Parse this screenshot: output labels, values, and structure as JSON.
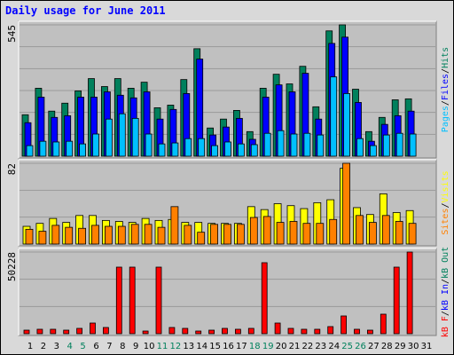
{
  "chart_data": {
    "type": "bar",
    "title": "Daily usage for June 2011",
    "categories": [
      "1",
      "2",
      "3",
      "4",
      "5",
      "6",
      "7",
      "8",
      "9",
      "10",
      "11",
      "12",
      "13",
      "14",
      "15",
      "16",
      "17",
      "18",
      "19",
      "20",
      "21",
      "22",
      "23",
      "24",
      "25",
      "26",
      "27",
      "28",
      "29",
      "30",
      "31"
    ],
    "weekend_days": [
      4,
      5,
      11,
      12,
      18,
      19,
      25,
      26
    ],
    "weekday_color": "#000000",
    "weekend_color": "#00805c",
    "separator": "/",
    "panels": [
      {
        "ylim": [
          0,
          545
        ],
        "yticks": [
          545
        ],
        "grid_divisions": 6,
        "legend": [
          {
            "name": "Pages",
            "color": "#00c0ff"
          },
          {
            "name": "Files",
            "color": "#0000ff"
          },
          {
            "name": "Hits",
            "color": "#00805c"
          }
        ],
        "series": [
          {
            "color": "#00805c",
            "values": [
              172,
              282,
              187,
              220,
              271,
              322,
              289,
              322,
              282,
              307,
              201,
              212,
              318,
              446,
              117,
              154,
              190,
              102,
              282,
              340,
              300,
              373,
              205,
              520,
              545,
              278,
              102,
              161,
              234,
              238,
              0
            ]
          },
          {
            "color": "#0000ff",
            "values": [
              139,
              245,
              161,
              168,
              245,
              245,
              267,
              253,
              242,
              267,
              154,
              194,
              260,
              403,
              88,
              121,
              157,
              70,
              245,
              296,
              267,
              344,
              154,
              468,
              494,
              223,
              62,
              132,
              168,
              187,
              0
            ]
          },
          {
            "color": "#00c0ff",
            "values": [
              44,
              62,
              59,
              62,
              51,
              92,
              154,
              176,
              157,
              92,
              51,
              55,
              73,
              73,
              44,
              59,
              51,
              48,
              95,
              106,
              92,
              95,
              88,
              329,
              260,
              73,
              44,
              88,
              95,
              92,
              0
            ]
          }
        ]
      },
      {
        "ylim": [
          0,
          82
        ],
        "yticks": [
          82
        ],
        "grid_divisions": 3,
        "legend": [
          {
            "name": "Sites",
            "color": "#ff8000"
          },
          {
            "name": "Visits",
            "color": "#ffff00"
          }
        ],
        "series": [
          {
            "color": "#ffff00",
            "values": [
              18,
              21,
              26,
              22,
              29,
              29,
              24,
              23,
              22,
              26,
              24,
              25,
              22,
              22,
              21,
              21,
              21,
              38,
              35,
              41,
              39,
              36,
              42,
              45,
              77,
              37,
              30,
              51,
              32,
              34,
              0
            ]
          },
          {
            "color": "#ff8000",
            "values": [
              15,
              13,
              19,
              17,
              16,
              19,
              18,
              18,
              20,
              20,
              17,
              38,
              19,
              12,
              20,
              20,
              20,
              27,
              28,
              22,
              23,
              21,
              21,
              25,
              82,
              29,
              22,
              29,
              23,
              21,
              0
            ]
          }
        ]
      },
      {
        "ylim": [
          0,
          50228
        ],
        "yticks": [
          50228
        ],
        "grid_divisions": 3,
        "legend": [
          {
            "name": "kB F",
            "color": "#ff0000"
          },
          {
            "name": "kB In",
            "color": "#0000ff"
          },
          {
            "name": "kB Out",
            "color": "#00805c"
          }
        ],
        "series": [
          {
            "color": "#ff0000",
            "values": [
              2184,
              2730,
              2730,
              2184,
              3276,
              6552,
              3822,
              40950,
              40950,
              1638,
              40950,
              3822,
              3276,
              1638,
              2184,
              3276,
              2730,
              3276,
              43680,
              6552,
              3276,
              2730,
              2730,
              4368,
              10920,
              2730,
              2184,
              12012,
              40950,
              50228,
              0
            ]
          }
        ]
      }
    ]
  }
}
